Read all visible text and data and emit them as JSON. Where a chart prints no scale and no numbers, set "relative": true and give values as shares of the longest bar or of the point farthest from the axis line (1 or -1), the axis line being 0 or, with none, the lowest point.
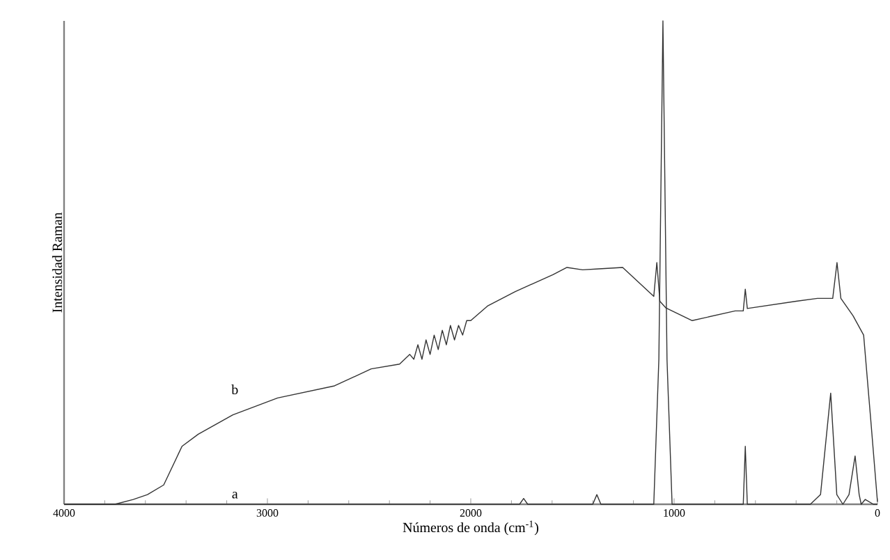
{
  "chart_data": {
    "type": "line",
    "relative": true,
    "xlabel": "Números de onda (cm$^{-1}$)",
    "ylabel": "Intensidad Raman",
    "xlim": [
      4000,
      0
    ],
    "xticks": [
      4000,
      3000,
      2000,
      1000,
      0
    ],
    "grid": false,
    "marker": "none",
    "line_style": "solid",
    "series": [
      {
        "name": "a",
        "color": "#333333",
        "x": [
          4000,
          1760,
          1740,
          1720,
          1400,
          1380,
          1360,
          1100,
          1075,
          1055,
          1035,
          1010,
          700,
          660,
          650,
          640,
          600,
          330,
          280,
          230,
          200,
          170,
          140,
          110,
          90,
          80,
          60,
          20,
          0
        ],
        "values": [
          0,
          0,
          0.012,
          0,
          0,
          0.02,
          0,
          0,
          0.3,
          1,
          0.3,
          0,
          0,
          0,
          0.12,
          0,
          0,
          0,
          0.02,
          0.23,
          0.02,
          0,
          0.02,
          0.1,
          0.02,
          0,
          0.01,
          0,
          0
        ]
      },
      {
        "name": "b",
        "color": "#333333",
        "x": [
          4000,
          3750,
          3660,
          3590,
          3510,
          3420,
          3340,
          3170,
          2950,
          2670,
          2490,
          2350,
          2300,
          2280,
          2260,
          2240,
          2220,
          2200,
          2180,
          2160,
          2140,
          2120,
          2100,
          2080,
          2060,
          2040,
          2020,
          2000,
          1918,
          1781,
          1596,
          1527,
          1450,
          1370,
          1253,
          1100,
          1085,
          1070,
          1040,
          911,
          700,
          660,
          650,
          640,
          400,
          295,
          220,
          199,
          180,
          120,
          68,
          34,
          0
        ],
        "values": [
          0,
          0,
          0.01,
          0.02,
          0.04,
          0.12,
          0.145,
          0.185,
          0.22,
          0.245,
          0.28,
          0.29,
          0.31,
          0.3,
          0.33,
          0.3,
          0.34,
          0.31,
          0.35,
          0.32,
          0.36,
          0.33,
          0.37,
          0.34,
          0.37,
          0.35,
          0.38,
          0.38,
          0.41,
          0.44,
          0.475,
          0.49,
          0.485,
          0.487,
          0.49,
          0.43,
          0.5,
          0.42,
          0.406,
          0.38,
          0.4,
          0.4,
          0.445,
          0.405,
          0.42,
          0.426,
          0.426,
          0.5,
          0.426,
          0.39,
          0.35,
          0.18,
          0.005
        ]
      }
    ]
  }
}
